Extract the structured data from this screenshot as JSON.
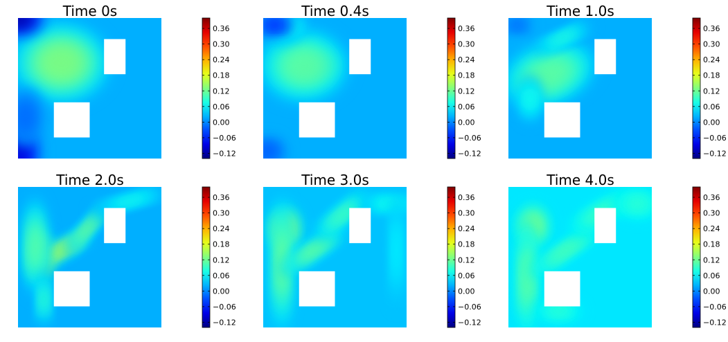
{
  "chart_data": {
    "type": "heatmap",
    "colormap": "jet",
    "value_range": [
      -0.14,
      0.4
    ],
    "colorbar_ticks": [
      -0.12,
      -0.06,
      0.0,
      0.06,
      0.12,
      0.18,
      0.24,
      0.3,
      0.36
    ],
    "colorbar_tick_labels": [
      "−0.12",
      "−0.06",
      "0.00",
      "0.06",
      "0.12",
      "0.18",
      "0.24",
      "0.30",
      "0.36"
    ],
    "domain_size": [
      1.0,
      1.0
    ],
    "obstacles": [
      {
        "name": "upper-right-obstacle",
        "x0": 0.6,
        "x1": 0.75,
        "y0": 0.6,
        "y1": 0.85
      },
      {
        "name": "lower-left-obstacle",
        "x0": 0.25,
        "x1": 0.5,
        "y0": 0.15,
        "y1": 0.4
      }
    ],
    "panels": [
      {
        "title": "Time 0s",
        "time": 0.0,
        "background": 0.02,
        "blobs": [
          {
            "cx": 0.32,
            "cy": 0.69,
            "rx": 0.14,
            "ry": 0.1,
            "rot": 0,
            "amp": 0.4
          },
          {
            "cx": 0.3,
            "cy": 0.68,
            "rx": 0.26,
            "ry": 0.22,
            "rot": 0,
            "amp": 0.12
          },
          {
            "cx": 0.0,
            "cy": 1.0,
            "rx": 0.14,
            "ry": 0.1,
            "rot": 0,
            "amp": -0.15
          },
          {
            "cx": 0.0,
            "cy": 0.05,
            "rx": 0.12,
            "ry": 0.18,
            "rot": 0,
            "amp": -0.12
          },
          {
            "cx": 0.05,
            "cy": 0.3,
            "rx": 0.1,
            "ry": 0.15,
            "rot": 0,
            "amp": -0.04
          }
        ]
      },
      {
        "title": "Time 0.4s",
        "time": 0.4,
        "background": 0.02,
        "blobs": [
          {
            "cx": 0.33,
            "cy": 0.65,
            "rx": 0.15,
            "ry": 0.09,
            "rot": -10,
            "amp": 0.34
          },
          {
            "cx": 0.28,
            "cy": 0.66,
            "rx": 0.24,
            "ry": 0.2,
            "rot": 0,
            "amp": 0.1
          },
          {
            "cx": 0.18,
            "cy": 0.92,
            "rx": 0.1,
            "ry": 0.06,
            "rot": -30,
            "amp": 0.06
          },
          {
            "cx": 0.08,
            "cy": 0.95,
            "rx": 0.1,
            "ry": 0.06,
            "rot": 0,
            "amp": -0.08
          },
          {
            "cx": 0.03,
            "cy": 0.05,
            "rx": 0.1,
            "ry": 0.08,
            "rot": 0,
            "amp": -0.05
          }
        ]
      },
      {
        "title": "Time 1.0s",
        "time": 1.0,
        "background": 0.02,
        "blobs": [
          {
            "cx": 0.3,
            "cy": 0.58,
            "rx": 0.18,
            "ry": 0.08,
            "rot": -25,
            "amp": 0.28
          },
          {
            "cx": 0.28,
            "cy": 0.6,
            "rx": 0.26,
            "ry": 0.17,
            "rot": -20,
            "amp": 0.1
          },
          {
            "cx": 0.38,
            "cy": 0.86,
            "rx": 0.16,
            "ry": 0.04,
            "rot": -25,
            "amp": 0.07
          },
          {
            "cx": 0.15,
            "cy": 0.42,
            "rx": 0.06,
            "ry": 0.12,
            "rot": 0,
            "amp": 0.06
          },
          {
            "cx": 0.06,
            "cy": 0.95,
            "rx": 0.08,
            "ry": 0.05,
            "rot": 0,
            "amp": -0.04
          }
        ]
      },
      {
        "title": "Time 2.0s",
        "time": 2.0,
        "background": 0.02,
        "blobs": [
          {
            "cx": 0.16,
            "cy": 0.5,
            "rx": 0.07,
            "ry": 0.14,
            "rot": 0,
            "amp": 0.22
          },
          {
            "cx": 0.3,
            "cy": 0.55,
            "rx": 0.18,
            "ry": 0.05,
            "rot": -30,
            "amp": 0.16
          },
          {
            "cx": 0.12,
            "cy": 0.58,
            "rx": 0.07,
            "ry": 0.26,
            "rot": 0,
            "amp": 0.1
          },
          {
            "cx": 0.48,
            "cy": 0.7,
            "rx": 0.16,
            "ry": 0.04,
            "rot": -50,
            "amp": 0.12
          },
          {
            "cx": 0.78,
            "cy": 0.9,
            "rx": 0.2,
            "ry": 0.04,
            "rot": -15,
            "amp": 0.06
          },
          {
            "cx": 0.18,
            "cy": 0.2,
            "rx": 0.04,
            "ry": 0.14,
            "rot": 0,
            "amp": 0.08
          }
        ]
      },
      {
        "title": "Time 3.0s",
        "time": 3.0,
        "background": 0.03,
        "blobs": [
          {
            "cx": 0.15,
            "cy": 0.7,
            "rx": 0.09,
            "ry": 0.13,
            "rot": 0,
            "amp": 0.14
          },
          {
            "cx": 0.13,
            "cy": 0.45,
            "rx": 0.06,
            "ry": 0.35,
            "rot": 0,
            "amp": 0.1
          },
          {
            "cx": 0.35,
            "cy": 0.55,
            "rx": 0.2,
            "ry": 0.05,
            "rot": -35,
            "amp": 0.1
          },
          {
            "cx": 0.55,
            "cy": 0.8,
            "rx": 0.18,
            "ry": 0.05,
            "rot": -40,
            "amp": 0.08
          },
          {
            "cx": 0.88,
            "cy": 0.88,
            "rx": 0.14,
            "ry": 0.05,
            "rot": 0,
            "amp": 0.05
          },
          {
            "cx": 0.93,
            "cy": 0.55,
            "rx": 0.04,
            "ry": 0.3,
            "rot": 0,
            "amp": 0.03
          }
        ]
      },
      {
        "title": "Time 4.0s",
        "time": 4.0,
        "background": 0.05,
        "blobs": [
          {
            "cx": 0.17,
            "cy": 0.72,
            "rx": 0.09,
            "ry": 0.12,
            "rot": 0,
            "amp": 0.09
          },
          {
            "cx": 0.13,
            "cy": 0.35,
            "rx": 0.06,
            "ry": 0.3,
            "rot": 0,
            "amp": 0.07
          },
          {
            "cx": 0.4,
            "cy": 0.55,
            "rx": 0.22,
            "ry": 0.05,
            "rot": -35,
            "amp": 0.06
          },
          {
            "cx": 0.65,
            "cy": 0.82,
            "rx": 0.2,
            "ry": 0.06,
            "rot": -30,
            "amp": 0.05
          },
          {
            "cx": 0.9,
            "cy": 0.88,
            "rx": 0.12,
            "ry": 0.08,
            "rot": 0,
            "amp": 0.04
          },
          {
            "cx": 0.35,
            "cy": 0.12,
            "rx": 0.12,
            "ry": 0.06,
            "rot": 0,
            "amp": 0.04
          }
        ]
      }
    ]
  }
}
